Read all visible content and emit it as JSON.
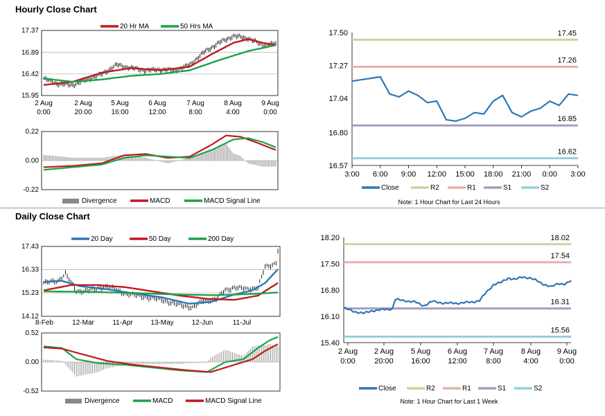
{
  "sections": {
    "hourly_title": "Hourly Close Chart",
    "daily_title": "Daily Close Chart"
  },
  "colors": {
    "red": "#c0191c",
    "green": "#1ba14a",
    "blue": "#2e75b6",
    "bar": "#888888",
    "r2": "#c4d79b",
    "r1": "#e6b0aa",
    "s1": "#a69bc2",
    "s2": "#93cddd",
    "close": "#2e75b6",
    "candle": "#000000"
  },
  "chart_data": [
    {
      "id": "hourly_price",
      "type": "line",
      "title": "Hourly Close Chart",
      "legend": [
        "20 Hr MA",
        "50 Hrs MA"
      ],
      "yticks": [
        "17.37",
        "16.89",
        "16.42",
        "15.95"
      ],
      "ylim": [
        15.95,
        17.37
      ],
      "xticks": [
        [
          "2 Aug",
          "0:00"
        ],
        [
          "2 Aug",
          "20:00"
        ],
        [
          "5 Aug",
          "16:00"
        ],
        [
          "6 Aug",
          "12:00"
        ],
        [
          "7 Aug",
          "8:00"
        ],
        [
          "8 Aug",
          "4:00"
        ],
        [
          "9 Aug",
          "0:00"
        ]
      ],
      "x_count": 160,
      "price_anchors": [
        [
          0,
          16.32
        ],
        [
          10,
          16.2
        ],
        [
          20,
          16.18
        ],
        [
          30,
          16.3
        ],
        [
          40,
          16.42
        ],
        [
          50,
          16.62
        ],
        [
          60,
          16.55
        ],
        [
          70,
          16.5
        ],
        [
          80,
          16.52
        ],
        [
          90,
          16.5
        ],
        [
          100,
          16.62
        ],
        [
          110,
          16.9
        ],
        [
          120,
          17.1
        ],
        [
          130,
          17.25
        ],
        [
          140,
          17.2
        ],
        [
          150,
          17.05
        ],
        [
          159,
          17.08
        ]
      ],
      "series": [
        {
          "name": "20 Hr MA",
          "color": "red",
          "anchors": [
            [
              0,
              16.18
            ],
            [
              20,
              16.25
            ],
            [
              40,
              16.45
            ],
            [
              60,
              16.55
            ],
            [
              80,
              16.5
            ],
            [
              100,
              16.58
            ],
            [
              115,
              16.85
            ],
            [
              130,
              17.1
            ],
            [
              140,
              17.18
            ],
            [
              150,
              17.1
            ],
            [
              159,
              17.05
            ]
          ]
        },
        {
          "name": "50 Hrs MA",
          "color": "green",
          "anchors": [
            [
              0,
              16.32
            ],
            [
              20,
              16.25
            ],
            [
              40,
              16.3
            ],
            [
              60,
              16.38
            ],
            [
              80,
              16.42
            ],
            [
              100,
              16.5
            ],
            [
              120,
              16.72
            ],
            [
              140,
              16.92
            ],
            [
              159,
              17.05
            ]
          ]
        }
      ]
    },
    {
      "id": "hourly_macd",
      "type": "line",
      "yticks": [
        "0.22",
        "0.00",
        "-0.22"
      ],
      "ylim": [
        -0.22,
        0.22
      ],
      "x_count": 160,
      "legend": [
        "Divergence",
        "MACD",
        "MACD Signal Line"
      ],
      "series": [
        {
          "name": "MACD",
          "color": "red",
          "anchors": [
            [
              0,
              -0.05
            ],
            [
              20,
              -0.04
            ],
            [
              40,
              -0.02
            ],
            [
              55,
              0.04
            ],
            [
              70,
              0.05
            ],
            [
              85,
              0.02
            ],
            [
              100,
              0.03
            ],
            [
              115,
              0.12
            ],
            [
              125,
              0.19
            ],
            [
              135,
              0.18
            ],
            [
              145,
              0.14
            ],
            [
              159,
              0.08
            ]
          ]
        },
        {
          "name": "MACD Signal Line",
          "color": "green",
          "anchors": [
            [
              0,
              -0.07
            ],
            [
              20,
              -0.05
            ],
            [
              40,
              -0.03
            ],
            [
              55,
              0.02
            ],
            [
              70,
              0.04
            ],
            [
              85,
              0.03
            ],
            [
              100,
              0.02
            ],
            [
              115,
              0.08
            ],
            [
              130,
              0.16
            ],
            [
              140,
              0.17
            ],
            [
              150,
              0.14
            ],
            [
              159,
              0.1
            ]
          ]
        }
      ],
      "divergence_from": [
        "MACD",
        "MACD Signal Line"
      ]
    },
    {
      "id": "hourly_close",
      "type": "line",
      "note": "Note: 1 Hour Chart for Last 24 Hours",
      "yticks": [
        "17.50",
        "17.27",
        "17.04",
        "16.80",
        "16.57"
      ],
      "ylim": [
        16.57,
        17.5
      ],
      "xticks": [
        "3:00",
        "6:00",
        "9:00",
        "12:00",
        "15:00",
        "18:00",
        "21:00",
        "0:00",
        "3:00"
      ],
      "x_count": 25,
      "close": [
        17.16,
        17.17,
        17.18,
        17.19,
        17.07,
        17.05,
        17.09,
        17.06,
        17.01,
        17.02,
        16.89,
        16.88,
        16.9,
        16.94,
        16.93,
        17.02,
        17.06,
        16.94,
        16.91,
        16.95,
        16.97,
        17.02,
        16.99,
        17.07,
        17.06
      ],
      "levels": [
        {
          "name": "R2",
          "value": 17.45,
          "label": "17.45",
          "color": "r2"
        },
        {
          "name": "R1",
          "value": 17.26,
          "label": "17.26",
          "color": "r1"
        },
        {
          "name": "S1",
          "value": 16.85,
          "label": "16.85",
          "color": "s1"
        },
        {
          "name": "S2",
          "value": 16.62,
          "label": "16.62",
          "color": "s2"
        }
      ],
      "legend": [
        "Close",
        "R2",
        "R1",
        "S1",
        "S2"
      ]
    },
    {
      "id": "daily_price",
      "type": "line",
      "title": "Daily Close Chart",
      "legend": [
        "20 Day",
        "50 Day",
        "200 Day"
      ],
      "yticks": [
        "17.43",
        "16.33",
        "15.23",
        "14.12"
      ],
      "ylim": [
        14.12,
        17.43
      ],
      "xticks": [
        "8-Feb",
        "12-Mar",
        "11-Apr",
        "13-May",
        "12-Jun",
        "11-Jul"
      ],
      "x_count": 130,
      "price_anchors": [
        [
          0,
          15.7
        ],
        [
          8,
          15.8
        ],
        [
          12,
          16.15
        ],
        [
          18,
          15.3
        ],
        [
          25,
          15.35
        ],
        [
          35,
          15.55
        ],
        [
          45,
          15.2
        ],
        [
          55,
          15.05
        ],
        [
          65,
          14.9
        ],
        [
          75,
          14.65
        ],
        [
          82,
          14.55
        ],
        [
          88,
          14.85
        ],
        [
          95,
          14.95
        ],
        [
          100,
          15.35
        ],
        [
          105,
          15.5
        ],
        [
          112,
          15.4
        ],
        [
          118,
          15.5
        ],
        [
          122,
          16.45
        ],
        [
          126,
          16.55
        ],
        [
          128,
          16.7
        ],
        [
          129,
          17.25
        ]
      ],
      "series": [
        {
          "name": "20 Day",
          "color": "blue",
          "anchors": [
            [
              0,
              15.75
            ],
            [
              10,
              15.8
            ],
            [
              20,
              15.55
            ],
            [
              35,
              15.4
            ],
            [
              50,
              15.2
            ],
            [
              65,
              15.02
            ],
            [
              80,
              14.72
            ],
            [
              92,
              14.8
            ],
            [
              105,
              15.15
            ],
            [
              115,
              15.35
            ],
            [
              122,
              15.7
            ],
            [
              129,
              16.35
            ]
          ]
        },
        {
          "name": "50 Day",
          "color": "red",
          "anchors": [
            [
              0,
              15.35
            ],
            [
              15,
              15.6
            ],
            [
              30,
              15.6
            ],
            [
              45,
              15.5
            ],
            [
              60,
              15.3
            ],
            [
              75,
              15.1
            ],
            [
              90,
              14.95
            ],
            [
              105,
              14.9
            ],
            [
              118,
              15.1
            ],
            [
              129,
              15.7
            ]
          ]
        },
        {
          "name": "200 Day",
          "color": "green",
          "anchors": [
            [
              0,
              15.3
            ],
            [
              25,
              15.28
            ],
            [
              50,
              15.22
            ],
            [
              75,
              15.15
            ],
            [
              95,
              15.12
            ],
            [
              115,
              15.18
            ],
            [
              129,
              15.25
            ]
          ]
        }
      ]
    },
    {
      "id": "daily_macd",
      "type": "line",
      "yticks": [
        "0.52",
        "0.00",
        "-0.52"
      ],
      "ylim": [
        -0.52,
        0.52
      ],
      "x_count": 130,
      "legend": [
        "Divergence",
        "MACD",
        "MACD Signal Line"
      ],
      "series": [
        {
          "name": "MACD",
          "color": "green",
          "anchors": [
            [
              0,
              0.28
            ],
            [
              10,
              0.25
            ],
            [
              18,
              0.05
            ],
            [
              30,
              -0.02
            ],
            [
              45,
              -0.05
            ],
            [
              60,
              -0.1
            ],
            [
              75,
              -0.15
            ],
            [
              90,
              -0.18
            ],
            [
              100,
              0.0
            ],
            [
              110,
              0.05
            ],
            [
              118,
              0.25
            ],
            [
              124,
              0.38
            ],
            [
              129,
              0.45
            ]
          ]
        },
        {
          "name": "MACD Signal Line",
          "color": "red",
          "anchors": [
            [
              0,
              0.26
            ],
            [
              10,
              0.24
            ],
            [
              20,
              0.15
            ],
            [
              35,
              0.02
            ],
            [
              50,
              -0.05
            ],
            [
              65,
              -0.1
            ],
            [
              80,
              -0.15
            ],
            [
              92,
              -0.18
            ],
            [
              105,
              -0.05
            ],
            [
              115,
              0.05
            ],
            [
              122,
              0.2
            ],
            [
              129,
              0.32
            ]
          ]
        }
      ],
      "divergence_from": [
        "MACD",
        "MACD Signal Line"
      ]
    },
    {
      "id": "daily_close",
      "type": "line",
      "note": "Note: 1 Hour Chart for Last 1 Week",
      "yticks": [
        "18.20",
        "17.50",
        "16.80",
        "16.10",
        "15.40"
      ],
      "ylim": [
        15.4,
        18.2
      ],
      "xticks": [
        [
          "2 Aug",
          "0:00"
        ],
        [
          "2 Aug",
          "20:00"
        ],
        [
          "5 Aug",
          "16:00"
        ],
        [
          "6 Aug",
          "12:00"
        ],
        [
          "7 Aug",
          "8:00"
        ],
        [
          "8 Aug",
          "4:00"
        ],
        [
          "9 Aug",
          "0:00"
        ]
      ],
      "x_count": 160,
      "close_anchors": [
        [
          0,
          16.32
        ],
        [
          8,
          16.22
        ],
        [
          14,
          16.18
        ],
        [
          20,
          16.25
        ],
        [
          28,
          16.28
        ],
        [
          34,
          16.3
        ],
        [
          36,
          16.55
        ],
        [
          42,
          16.52
        ],
        [
          50,
          16.48
        ],
        [
          56,
          16.38
        ],
        [
          62,
          16.5
        ],
        [
          70,
          16.45
        ],
        [
          80,
          16.45
        ],
        [
          90,
          16.48
        ],
        [
          95,
          16.52
        ],
        [
          100,
          16.75
        ],
        [
          105,
          16.95
        ],
        [
          110,
          17.0
        ],
        [
          115,
          17.12
        ],
        [
          120,
          17.08
        ],
        [
          125,
          17.15
        ],
        [
          130,
          17.12
        ],
        [
          135,
          17.05
        ],
        [
          140,
          16.95
        ],
        [
          145,
          16.88
        ],
        [
          150,
          16.98
        ],
        [
          155,
          16.95
        ],
        [
          159,
          17.05
        ]
      ],
      "levels": [
        {
          "name": "R2",
          "value": 18.02,
          "label": "18.02",
          "color": "r2"
        },
        {
          "name": "R1",
          "value": 17.54,
          "label": "17.54",
          "color": "r1"
        },
        {
          "name": "S1",
          "value": 16.31,
          "label": "16.31",
          "color": "s1"
        },
        {
          "name": "S2",
          "value": 15.56,
          "label": "15.56",
          "color": "s2"
        }
      ],
      "legend": [
        "Close",
        "R2",
        "R1",
        "S1",
        "S2"
      ]
    }
  ]
}
